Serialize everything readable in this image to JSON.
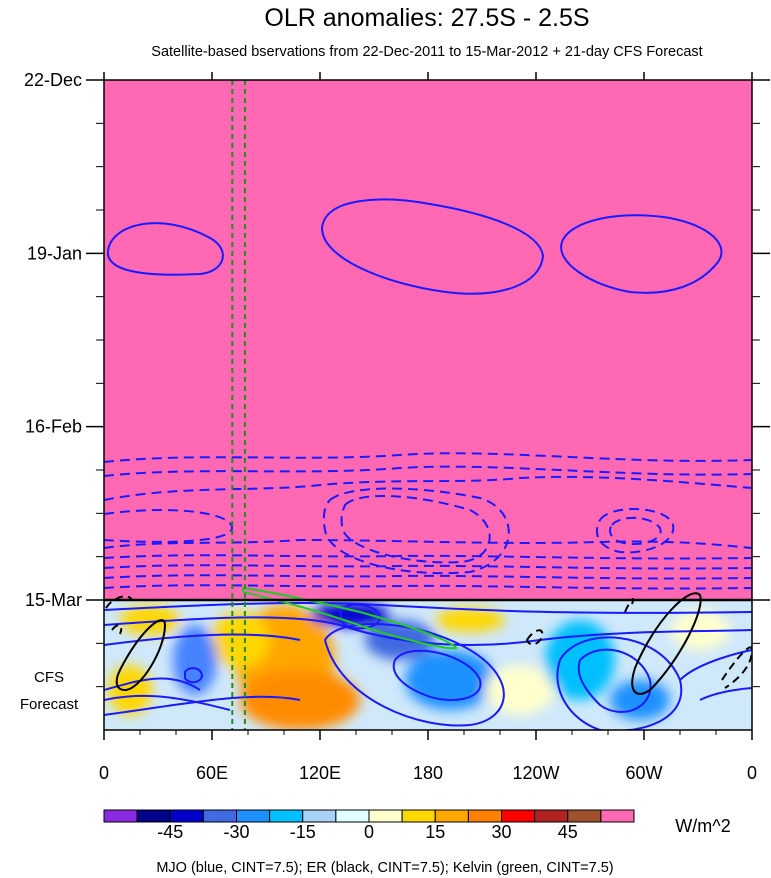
{
  "chart_data": {
    "type": "heatmap",
    "title": "OLR anomalies: 27.5S - 2.5S",
    "subtitle": "Satellite-based bservations from 22-Dec-2011 to 15-Mar-2012 + 21-day CFS Forecast",
    "x_tick_labels": [
      "0",
      "60E",
      "120E",
      "180",
      "120W",
      "60W",
      "0"
    ],
    "x_tick_degrees_east": [
      0,
      60,
      120,
      180,
      240,
      300,
      360
    ],
    "xlim_degrees_east": [
      0,
      360
    ],
    "y_tick_labels": [
      "22-Dec",
      "19-Jan",
      "16-Feb",
      "15-Mar"
    ],
    "y_day_offsets": {
      "22-Dec": 0,
      "19-Jan": 28,
      "16-Feb": 56,
      "15-Mar": 84
    },
    "forecast_days": 21,
    "observation_fill_color": "#ff69b4",
    "forecast_label": [
      "CFS",
      "Forecast"
    ],
    "units": "W/m^2",
    "colorbar": {
      "levels": [
        -52.5,
        -45,
        -37.5,
        -30,
        -22.5,
        -15,
        -7.5,
        0,
        7.5,
        15,
        22.5,
        30,
        37.5,
        45,
        52.5
      ],
      "labels": [
        "-45",
        "-30",
        "-15",
        "0",
        "15",
        "30",
        "45"
      ],
      "label_values": [
        -45,
        -30,
        -15,
        0,
        15,
        30,
        45
      ],
      "colors": [
        "#8a2be2",
        "#00008b",
        "#0000cd",
        "#4169e1",
        "#1e90ff",
        "#00bfff",
        "#a9d3f5",
        "#e0ffff",
        "#ffffcc",
        "#ffd700",
        "#ffa500",
        "#ff7f00",
        "#ff0000",
        "#b22222",
        "#a0522d",
        "#ff69b4"
      ]
    },
    "footer": "MJO (blue, CINT=7.5); ER (black, CINT=7.5); Kelvin (green, CINT=7.5)",
    "series": [
      {
        "name": "MJO",
        "color": "#1a1aff"
      },
      {
        "name": "ER",
        "color": "#000000"
      },
      {
        "name": "Kelvin",
        "color": "#22cc22"
      }
    ],
    "dashed_vertical_lines_degrees_east": [
      71,
      78
    ],
    "dashed_vertical_color": "#228b22"
  }
}
